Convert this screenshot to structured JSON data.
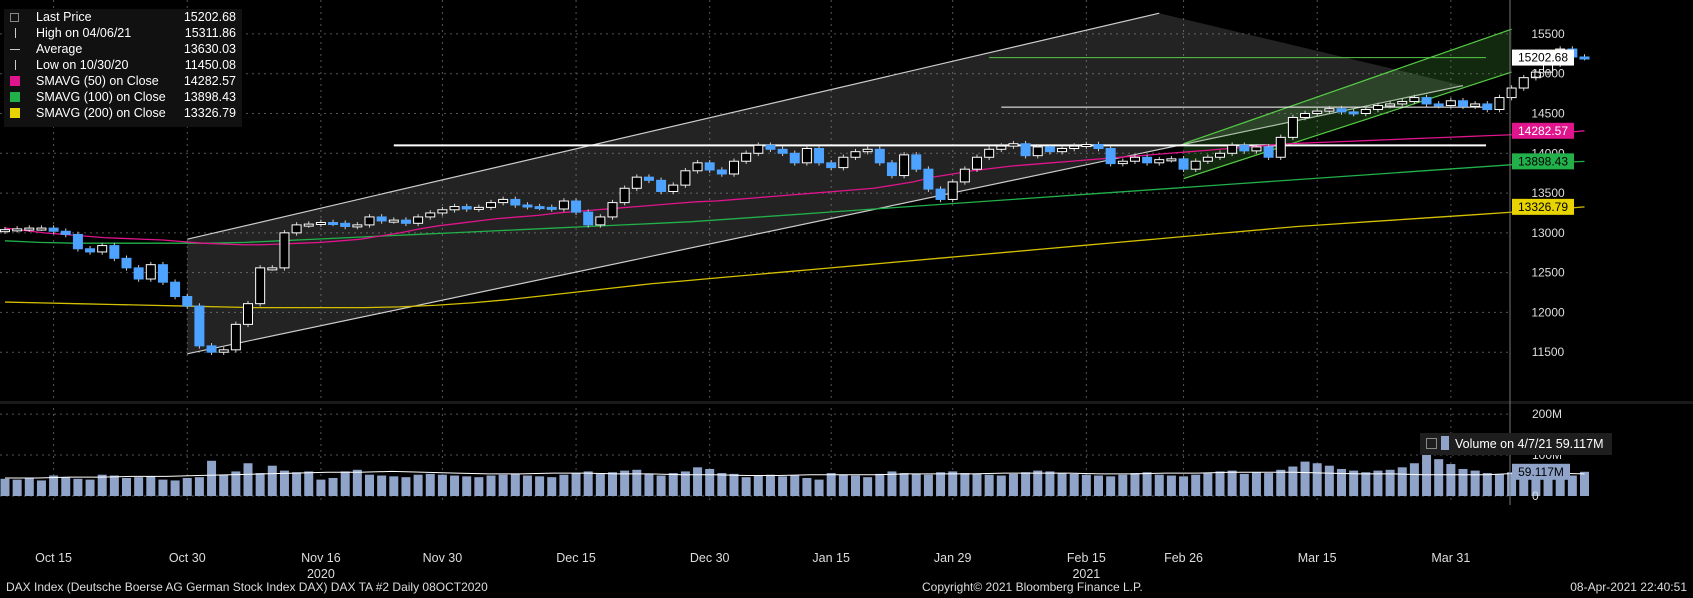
{
  "legend": {
    "rows": [
      {
        "label": "Last Price",
        "value": "15202.68",
        "symbol": "box",
        "color": "#888888"
      },
      {
        "label": "High on 04/06/21",
        "value": "15311.86",
        "symbol": "line",
        "color": "#cccccc"
      },
      {
        "label": "Average",
        "value": "13630.03",
        "symbol": "dash",
        "color": "#cccccc"
      },
      {
        "label": "Low on 10/30/20",
        "value": "11450.08",
        "symbol": "line",
        "color": "#cccccc"
      },
      {
        "label": "SMAVG (50)  on Close",
        "value": "14282.57",
        "symbol": "fill",
        "color": "#e0148c"
      },
      {
        "label": "SMAVG (100)  on Close",
        "value": "13898.43",
        "symbol": "fill",
        "color": "#22b04a"
      },
      {
        "label": "SMAVG (200)  on Close",
        "value": "13326.79",
        "symbol": "fill",
        "color": "#e8d400"
      }
    ]
  },
  "volume_legend": {
    "label": "Volume on 4/7/21",
    "value": "59.117M"
  },
  "footer": {
    "left": "DAX Index (Deutsche Boerse AG German Stock Index DAX) DAX TA #2  Daily 08OCT2020",
    "center": "Copyright© 2021 Bloomberg Finance L.P.",
    "right": "08-Apr-2021 22:40:51"
  },
  "colors": {
    "up": "#ffffff",
    "down": "#4da3ff",
    "sma50": "#e0148c",
    "sma100": "#22b04a",
    "sma200": "#d4c000",
    "volume": "#8fa4c8",
    "grid": "#555555"
  },
  "chart_data": {
    "type": "candlestick",
    "price_axis": {
      "ticks": [
        11500,
        12000,
        12500,
        13000,
        13500,
        14000,
        14500,
        15000,
        15500
      ],
      "range": [
        11000,
        15700
      ]
    },
    "volume_axis": {
      "ticks": [
        "0",
        "100M",
        "200M"
      ],
      "range": [
        0,
        210
      ]
    },
    "x_labels": [
      "Oct 15",
      "Oct 30",
      "Nov 16",
      "Nov 30",
      "Dec 15",
      "Dec 30",
      "Jan 15",
      "Jan 29",
      "Feb 15",
      "Feb 26",
      "Mar 15",
      "Mar 31"
    ],
    "x_label_index": [
      4,
      15,
      26,
      36,
      47,
      58,
      68,
      78,
      89,
      97,
      108,
      119
    ],
    "year_labels": [
      {
        "text": "2020",
        "index": 26
      },
      {
        "text": "2021",
        "index": 89
      }
    ],
    "price_tags": [
      {
        "text": "15202.68",
        "value": 15202.68,
        "bg": "#ffffff",
        "fg": "#000000"
      },
      {
        "text": "14282.57",
        "value": 14282.57,
        "bg": "#e0148c",
        "fg": "#ffffff"
      },
      {
        "text": "13898.43",
        "value": 13898.43,
        "bg": "#22b04a",
        "fg": "#000000"
      },
      {
        "text": "13326.79",
        "value": 13326.79,
        "bg": "#e8d400",
        "fg": "#000000"
      }
    ],
    "volume_tags": [
      {
        "text": "59.117M",
        "value": 59.117
      }
    ],
    "closes": [
      13040,
      13050,
      13060,
      13060,
      13020,
      12980,
      12800,
      12760,
      12840,
      12680,
      12560,
      12420,
      12600,
      12380,
      12200,
      12080,
      11580,
      11500,
      11530,
      11850,
      12110,
      12560,
      12560,
      13000,
      13100,
      13110,
      13130,
      13120,
      13080,
      13100,
      13200,
      13150,
      13160,
      13120,
      13200,
      13250,
      13290,
      13330,
      13300,
      13320,
      13380,
      13420,
      13350,
      13330,
      13320,
      13300,
      13400,
      13260,
      13100,
      13200,
      13380,
      13560,
      13700,
      13660,
      13520,
      13600,
      13780,
      13880,
      13790,
      13740,
      13900,
      14000,
      14100,
      14050,
      14000,
      13880,
      14060,
      13880,
      13820,
      13950,
      14020,
      14050,
      13880,
      13720,
      13980,
      13800,
      13550,
      13420,
      13640,
      13800,
      13950,
      14050,
      14090,
      14120,
      13970,
      14080,
      14020,
      14060,
      14090,
      14110,
      14060,
      13870,
      13900,
      13950,
      13880,
      13920,
      13930,
      13800,
      13900,
      13950,
      14000,
      14100,
      14030,
      14080,
      13950,
      14200,
      14450,
      14500,
      14530,
      14560,
      14520,
      14500,
      14550,
      14600,
      14620,
      14650,
      14700,
      14620,
      14600,
      14660,
      14590,
      14620,
      14550,
      14700,
      14820,
      14950,
      15020,
      15120,
      15310,
      15210,
      15202.68
    ],
    "volumes": [
      42,
      40,
      44,
      38,
      50,
      46,
      42,
      40,
      52,
      50,
      44,
      46,
      48,
      40,
      38,
      44,
      46,
      86,
      52,
      60,
      80,
      56,
      74,
      62,
      58,
      60,
      40,
      44,
      60,
      64,
      52,
      50,
      48,
      46,
      52,
      54,
      52,
      50,
      48,
      46,
      50,
      52,
      54,
      50,
      48,
      46,
      52,
      56,
      60,
      54,
      58,
      62,
      64,
      54,
      50,
      56,
      60,
      70,
      66,
      56,
      54,
      46,
      50,
      52,
      48,
      50,
      44,
      40,
      56,
      52,
      50,
      46,
      54,
      60,
      56,
      54,
      52,
      58,
      60,
      56,
      54,
      52,
      50,
      54,
      58,
      62,
      60,
      56,
      54,
      52,
      50,
      48,
      52,
      56,
      58,
      52,
      50,
      48,
      52,
      56,
      60,
      62,
      54,
      58,
      56,
      64,
      72,
      84,
      80,
      74,
      66,
      62,
      58,
      62,
      64,
      70,
      80,
      150,
      90,
      78,
      66,
      62,
      56,
      54,
      58,
      60,
      66,
      62,
      56,
      50,
      59.117
    ],
    "sma50": [
      13060,
      13030,
      13000,
      12980,
      12960,
      12940,
      12930,
      12920,
      12910,
      12890,
      12870,
      12860,
      12850,
      12850,
      12860,
      12870,
      12880,
      12900,
      12920,
      12960,
      13000,
      13050,
      13090,
      13120,
      13150,
      13180,
      13200,
      13220,
      13250,
      13270,
      13290,
      13310,
      13330,
      13350,
      13370,
      13390,
      13400,
      13420,
      13440,
      13460,
      13480,
      13500,
      13520,
      13540,
      13560,
      13600,
      13640,
      13700,
      13740,
      13780,
      13810,
      13840,
      13860,
      13880,
      13900,
      13920,
      13940,
      13960,
      13980,
      14000,
      14020,
      14040,
      14060,
      14080,
      14100,
      14120,
      14130,
      14140,
      14150,
      14160,
      14170,
      14180,
      14190,
      14200,
      14210,
      14220,
      14230,
      14240,
      14250,
      14260,
      14282.57
    ],
    "sma100": [
      12900,
      12880,
      12870,
      12870,
      12870,
      12870,
      12870,
      12880,
      12900,
      12920,
      12940,
      12960,
      12980,
      13000,
      13020,
      13040,
      13060,
      13080,
      13100,
      13120,
      13140,
      13170,
      13200,
      13230,
      13260,
      13290,
      13320,
      13350,
      13380,
      13410,
      13440,
      13470,
      13500,
      13530,
      13560,
      13590,
      13620,
      13650,
      13680,
      13710,
      13740,
      13770,
      13800,
      13830,
      13860,
      13880,
      13898.43
    ],
    "sma200": [
      12130,
      12120,
      12110,
      12100,
      12090,
      12080,
      12070,
      12060,
      12060,
      12060,
      12060,
      12070,
      12090,
      12120,
      12160,
      12210,
      12260,
      12310,
      12360,
      12400,
      12440,
      12480,
      12520,
      12560,
      12600,
      12640,
      12680,
      12720,
      12760,
      12800,
      12840,
      12880,
      12920,
      12960,
      13000,
      13040,
      13080,
      13110,
      13140,
      13170,
      13200,
      13230,
      13260,
      13290,
      13326.79
    ],
    "avg_volume": [
      44,
      44,
      46,
      46,
      48,
      48,
      50,
      52,
      54,
      56,
      58,
      58,
      60,
      58,
      56,
      54,
      54,
      56,
      56,
      54,
      54,
      52,
      52,
      50,
      50,
      52,
      52,
      52,
      54,
      54,
      54,
      56,
      56,
      56,
      54,
      54,
      56,
      56,
      58,
      58,
      58,
      56,
      54,
      54,
      52,
      52,
      52,
      56,
      56,
      54
    ],
    "horizontal_lines": [
      15202.68,
      14580,
      14100
    ],
    "channels": [
      {
        "color": "#cccccc",
        "fill": "rgba(160,160,160,0.22)",
        "upper": [
          [
            15,
            12920
          ],
          [
            95,
            15760
          ]
        ],
        "lower": [
          [
            15,
            11480
          ],
          [
            120,
            14850
          ]
        ]
      },
      {
        "color": "#55cc44",
        "fill": "rgba(70,160,60,0.25)",
        "upper": [
          [
            97,
            14120
          ],
          [
            124,
            15560
          ]
        ],
        "lower": [
          [
            97,
            13680
          ],
          [
            124,
            15020
          ]
        ]
      }
    ]
  }
}
